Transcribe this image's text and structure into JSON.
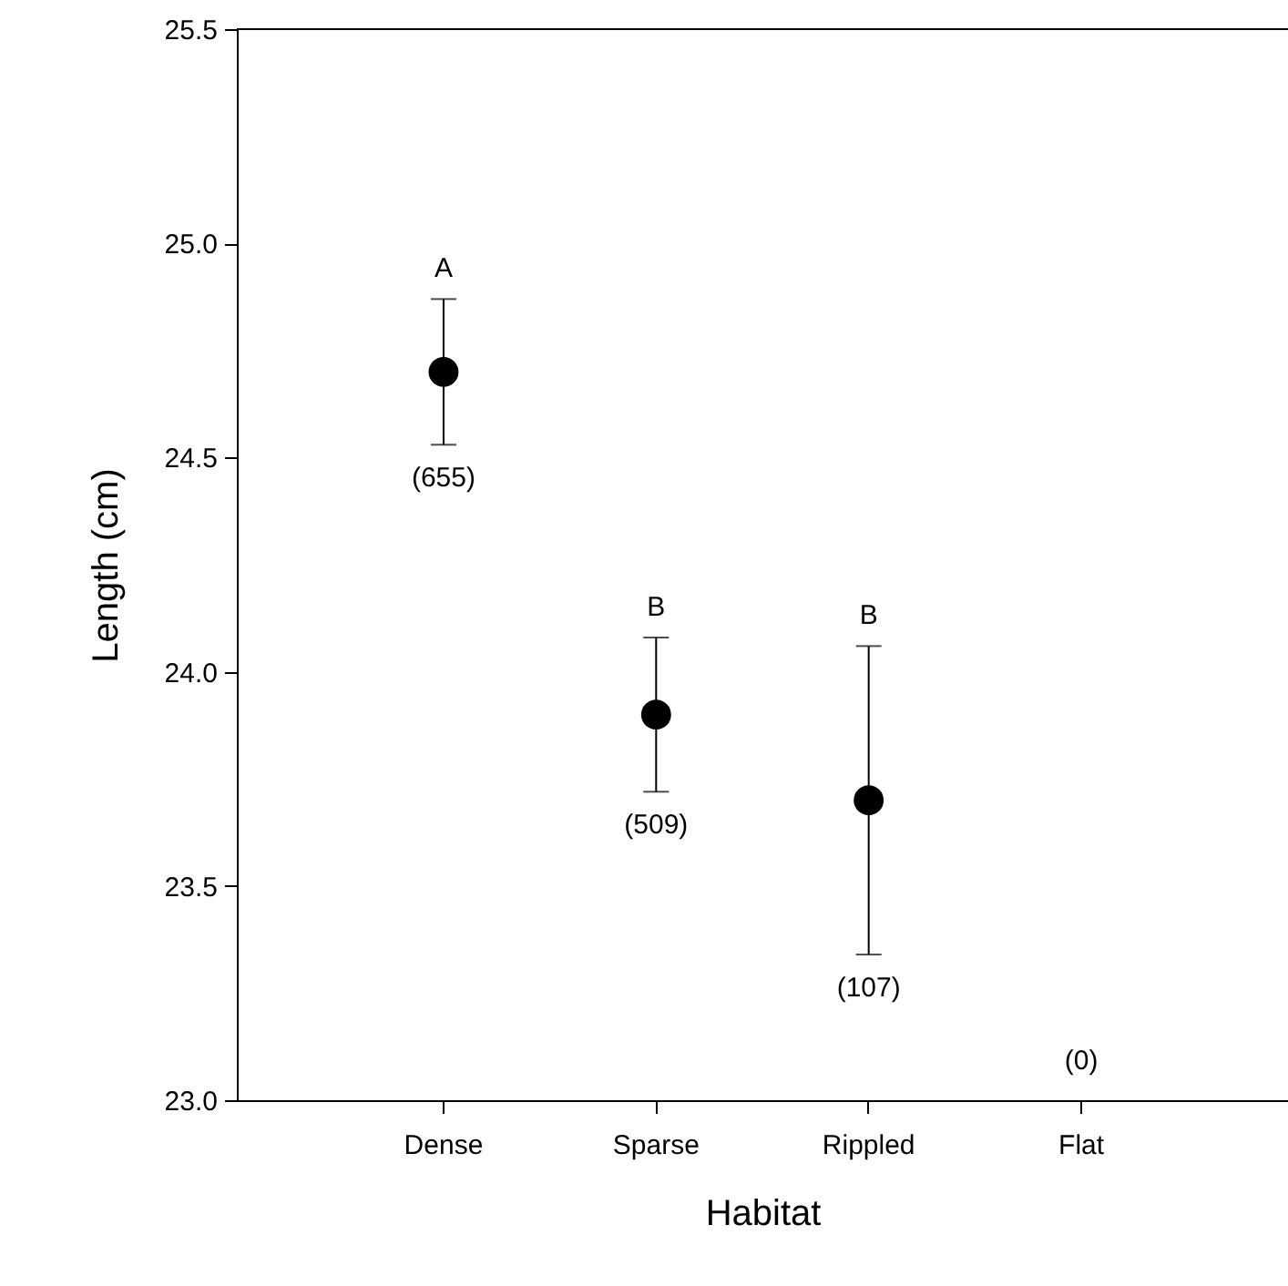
{
  "chart_data": {
    "type": "scatter",
    "xlabel": "Habitat",
    "ylabel": "Length (cm)",
    "categories": [
      "Dense",
      "Sparse",
      "Rippled",
      "Flat"
    ],
    "values": [
      24.7,
      23.9,
      23.7,
      null
    ],
    "errors": [
      0.17,
      0.18,
      0.36,
      null
    ],
    "color": "#000000",
    "marker": "circle",
    "ylim": [
      23.0,
      25.5
    ],
    "yticks": [
      {
        "value": 23,
        "label": "23.0"
      },
      23.5,
      {
        "value": 24,
        "label": "24.0"
      },
      24.5,
      {
        "value": 25,
        "label": "25.0"
      },
      25.5
    ],
    "annotations": [
      "A",
      "(655)",
      "B",
      "(509)",
      "B",
      "(107)",
      "(0)"
    ]
  }
}
